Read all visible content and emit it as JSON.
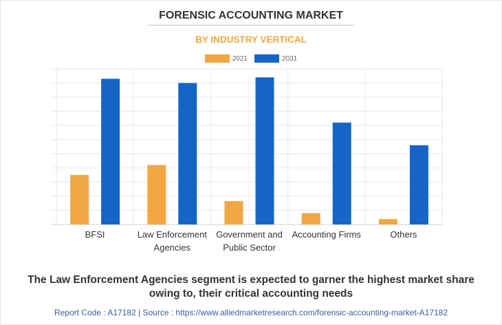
{
  "title": "FORENSIC ACCOUNTING MARKET",
  "subtitle": "BY INDUSTRY VERTICAL",
  "colors": {
    "2021": "#f2a742",
    "2031": "#1565c8",
    "title": "#333333",
    "subtitle": "#f2a742",
    "source": "#3a5ba0"
  },
  "chart_data": {
    "type": "bar",
    "categories": [
      [
        "BFSI"
      ],
      [
        "Law Enforcement",
        "Agencies"
      ],
      [
        "Government and",
        "Public Sector"
      ],
      [
        "Accounting Firms"
      ],
      [
        "Others"
      ]
    ],
    "series": [
      {
        "name": "2021",
        "values": [
          3.5,
          4.2,
          1.65,
          0.8,
          0.38
        ]
      },
      {
        "name": "2031",
        "values": [
          10.3,
          10.0,
          10.4,
          7.2,
          5.6
        ]
      }
    ],
    "ylim": [
      0,
      11
    ],
    "y_ticks": 11,
    "grid": true,
    "legend": "top-center",
    "xlabel": "",
    "ylabel": ""
  },
  "footer": {
    "summary": "The Law Enforcement Agencies segment is expected to garner the highest market share owing to, their critical accounting needs",
    "source": "Report Code : A17182  |  Source : https://www.alliedmarketresearch.com/forensic-accounting-market-A17182"
  }
}
